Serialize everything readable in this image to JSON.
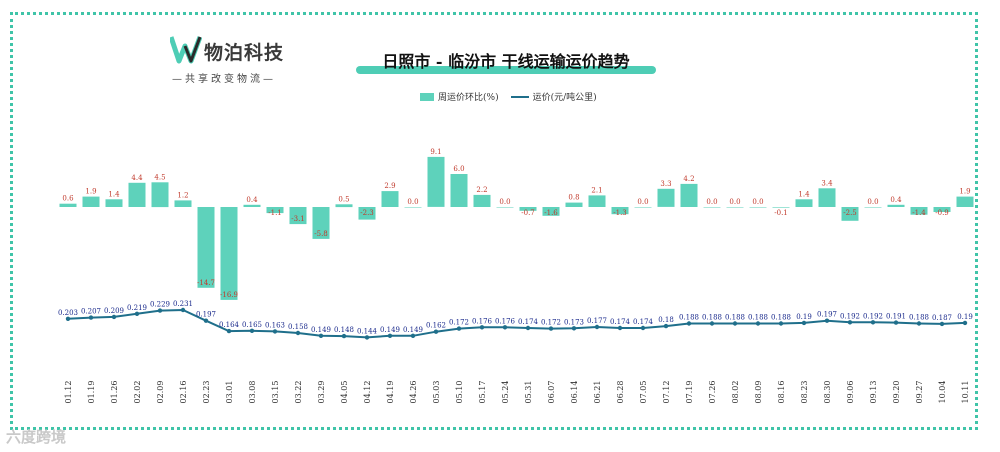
{
  "brand": {
    "name": "物泊科技",
    "tagline": "—共享改变物流—",
    "accent": "#4ecdb5",
    "logo_icon": "wubo-w-logo"
  },
  "legend": {
    "bar_label": "周运价环比(%)",
    "line_label": "运价(元/吨公里)"
  },
  "watermark": "六度跨境",
  "colors": {
    "bar": "#5ed2bb",
    "line": "#1f6f8b",
    "bar_label": "#c0392b",
    "line_label": "#1a2a8c",
    "frame": "#3fc4a8"
  },
  "chart_data": {
    "type": "bar",
    "title": "日照市 - 临汾市 干线运输运价趋势",
    "categories": [
      "01.12",
      "01.19",
      "01.26",
      "02.02",
      "02.09",
      "02.16",
      "02.23",
      "03.01",
      "03.08",
      "03.15",
      "03.22",
      "03.29",
      "04.05",
      "04.12",
      "04.19",
      "04.26",
      "05.03",
      "05.10",
      "05.17",
      "05.24",
      "05.31",
      "06.07",
      "06.14",
      "06.21",
      "06.28",
      "07.05",
      "07.12",
      "07.19",
      "07.26",
      "08.02",
      "08.09",
      "08.16",
      "08.23",
      "08.30",
      "09.06",
      "09.13",
      "09.20",
      "09.27",
      "10.04",
      "10.11"
    ],
    "series": [
      {
        "name": "周运价环比(%)",
        "type": "bar",
        "values": [
          0.6,
          1.9,
          1.4,
          4.4,
          4.5,
          1.2,
          -14.7,
          -16.9,
          0.4,
          -1.1,
          -3.1,
          -5.8,
          0.5,
          -2.3,
          2.9,
          0.0,
          9.1,
          6.0,
          2.2,
          0.0,
          -0.7,
          -1.6,
          0.8,
          2.1,
          -1.3,
          0.0,
          3.3,
          4.2,
          0.0,
          0.0,
          0.0,
          -0.1,
          1.4,
          3.4,
          -2.5,
          0.0,
          0.4,
          -1.4,
          -0.9,
          1.9
        ],
        "labels": [
          "0.6",
          "1.9",
          "1.4",
          "4.4",
          "4.5",
          "1.2",
          "-14.7",
          "-16.9",
          "0.4",
          "-1.1",
          "-3.1",
          "-5.8",
          "0.5",
          "-2.3",
          "2.9",
          "0.0",
          "9.1",
          "6.0",
          "2.2",
          "0.0",
          "-0.7",
          "-1.6",
          "0.8",
          "2.1",
          "-1.3",
          "0.0",
          "3.3",
          "4.2",
          "0.0",
          "0.0",
          "0.0",
          "-0.1",
          "1.4",
          "3.4",
          "-2.5",
          "0.0",
          "0.4",
          "-1.4",
          "-0.9",
          "1.9"
        ]
      },
      {
        "name": "运价(元/吨公里)",
        "type": "line",
        "values": [
          0.203,
          0.207,
          0.209,
          0.219,
          0.229,
          0.231,
          0.197,
          0.164,
          0.165,
          0.163,
          0.158,
          0.149,
          0.148,
          0.144,
          0.149,
          0.149,
          0.162,
          0.172,
          0.176,
          0.176,
          0.174,
          0.172,
          0.173,
          0.177,
          0.174,
          0.174,
          0.18,
          0.188,
          0.188,
          0.188,
          0.188,
          0.188,
          0.19,
          0.197,
          0.192,
          0.192,
          0.191,
          0.188,
          0.187,
          0.19
        ],
        "labels": [
          "0.203",
          "0.207",
          "0.209",
          "0.219",
          "0.229",
          "0.231",
          "0.197",
          "0.164",
          "0.165",
          "0.163",
          "0.158",
          "0.149",
          "0.148",
          "0.144",
          "0.149",
          "0.149",
          "0.162",
          "0.172",
          "0.176",
          "0.176",
          "0.174",
          "0.172",
          "0.173",
          "0.177",
          "0.174",
          "0.174",
          "0.18",
          "0.188",
          "0.188",
          "0.188",
          "0.188",
          "0.188",
          "0.19",
          "0.197",
          "0.192",
          "0.192",
          "0.191",
          "0.188",
          "0.187",
          "0.19"
        ]
      }
    ],
    "legend_position": "top-center",
    "grid": false
  }
}
